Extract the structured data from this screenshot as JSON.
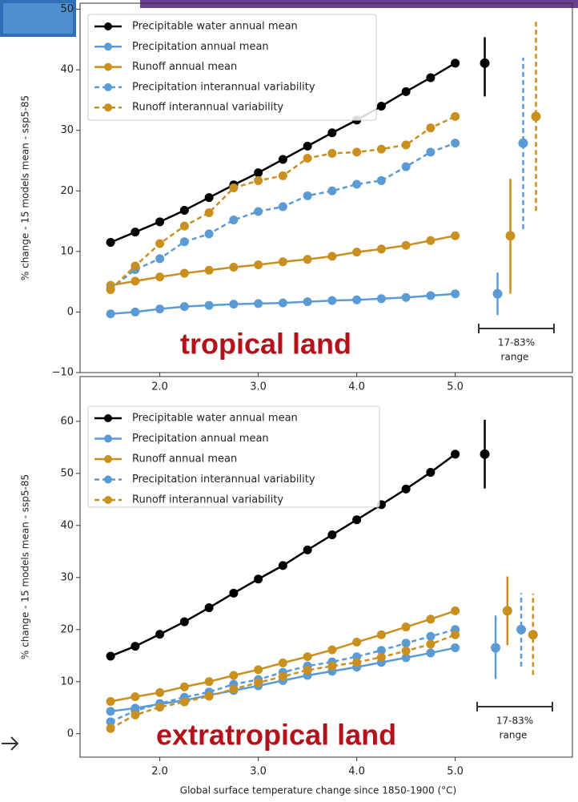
{
  "chart_data": [
    {
      "type": "line",
      "annotation": "tropical land",
      "range_label": "17-83%",
      "range_sublabel": "range",
      "ylabel": "% change - 15 models mean - ssp5-85",
      "x": [
        1.5,
        1.75,
        2.0,
        2.25,
        2.5,
        2.75,
        3.0,
        3.25,
        3.5,
        3.75,
        4.0,
        4.25,
        4.5,
        4.75,
        5.0
      ],
      "xlim": [
        1.19,
        6.19
      ],
      "xticks": [
        {
          "value": 2,
          "label": "2.0"
        },
        {
          "value": 3,
          "label": "3.0"
        },
        {
          "value": 4,
          "label": "4.0"
        },
        {
          "value": 5,
          "label": "5.0"
        }
      ],
      "ylim": [
        -10,
        51
      ],
      "yticks": [
        {
          "value": -10,
          "label": "−10"
        },
        0,
        10,
        20,
        30,
        40,
        50
      ],
      "series": [
        {
          "name": "Precipitable water annual mean",
          "color": "#000000",
          "linestyle": "solid",
          "values": [
            11.5,
            13.2,
            14.9,
            16.8,
            18.9,
            21.0,
            23.0,
            25.2,
            27.4,
            29.6,
            31.7,
            34.0,
            36.4,
            38.7,
            41.1
          ],
          "range": {
            "x": 5.3,
            "low": 35.6,
            "high": 45.4
          }
        },
        {
          "name": "Precipitation annual mean",
          "color": "#5b9bd5",
          "linestyle": "solid",
          "values": [
            -0.3,
            0,
            0.5,
            0.9,
            1.1,
            1.3,
            1.4,
            1.5,
            1.7,
            1.9,
            2.0,
            2.2,
            2.4,
            2.7,
            3.0
          ],
          "range": {
            "x": 5.43,
            "low": -0.5,
            "high": 6.5
          }
        },
        {
          "name": "Runoff annual mean",
          "color": "#c98f1f",
          "linestyle": "solid",
          "values": [
            4.4,
            5.1,
            5.8,
            6.4,
            6.9,
            7.4,
            7.8,
            8.3,
            8.7,
            9.2,
            9.9,
            10.4,
            11.0,
            11.8,
            12.6
          ],
          "range": {
            "x": 5.56,
            "low": 3.0,
            "high": 22.0
          }
        },
        {
          "name": "Precipitation interannual variability",
          "color": "#5b9bd5",
          "linestyle": "dashed",
          "values": [
            3.8,
            7.0,
            8.8,
            11.6,
            12.9,
            15.2,
            16.6,
            17.4,
            19.2,
            20.0,
            21.1,
            21.7,
            24.0,
            26.4,
            27.9
          ],
          "range": {
            "x": 5.69,
            "low": 13.7,
            "high": 42.0
          }
        },
        {
          "name": "Runoff interannual variability",
          "color": "#c98f1f",
          "linestyle": "dashed",
          "values": [
            3.7,
            7.6,
            11.3,
            14.2,
            16.4,
            20.5,
            21.7,
            22.5,
            25.4,
            26.2,
            26.4,
            26.9,
            27.6,
            30.4,
            32.3
          ],
          "range": {
            "x": 5.82,
            "low": 16.7,
            "high": 48.0
          }
        }
      ]
    },
    {
      "type": "line",
      "annotation": "extratropical land",
      "range_label": "17-83%",
      "range_sublabel": "range",
      "ylabel": "% change - 15 models mean - ssp5-85",
      "xlabel": "Global surface temperature change since 1850-1900 (°C)",
      "x": [
        1.5,
        1.75,
        2.0,
        2.25,
        2.5,
        2.75,
        3.0,
        3.25,
        3.5,
        3.75,
        4.0,
        4.25,
        4.5,
        4.75,
        5.0
      ],
      "xlim": [
        1.19,
        6.19
      ],
      "xticks": [
        {
          "value": 2,
          "label": "2.0"
        },
        {
          "value": 3,
          "label": "3.0"
        },
        {
          "value": 4,
          "label": "4.0"
        },
        {
          "value": 5,
          "label": "5.0"
        }
      ],
      "ylim": [
        -4.5,
        68.6
      ],
      "yticks": [
        0,
        10,
        20,
        30,
        40,
        50,
        60
      ],
      "series": [
        {
          "name": "Precipitable water annual mean",
          "color": "#000000",
          "linestyle": "solid",
          "values": [
            14.9,
            16.8,
            19.1,
            21.5,
            24.2,
            27.0,
            29.7,
            32.3,
            35.3,
            38.2,
            41.1,
            44.0,
            47.0,
            50.2,
            53.7
          ],
          "range": {
            "x": 5.3,
            "low": 47.1,
            "high": 60.3
          }
        },
        {
          "name": "Precipitation annual mean",
          "color": "#5b9bd5",
          "linestyle": "solid",
          "values": [
            4.3,
            4.9,
            5.7,
            6.4,
            7.4,
            8.3,
            9.2,
            10.2,
            11.2,
            12.0,
            12.8,
            13.7,
            14.6,
            15.5,
            16.5
          ],
          "range": {
            "x": 5.41,
            "low": 10.5,
            "high": 22.7
          }
        },
        {
          "name": "Runoff annual mean",
          "color": "#c98f1f",
          "linestyle": "solid",
          "values": [
            6.2,
            7.1,
            7.9,
            9.0,
            10.0,
            11.2,
            12.3,
            13.6,
            14.8,
            16.1,
            17.6,
            19.0,
            20.5,
            22.0,
            23.6
          ],
          "range": {
            "x": 5.53,
            "low": 17.0,
            "high": 30.2
          }
        },
        {
          "name": "Precipitation interannual variability",
          "color": "#5b9bd5",
          "linestyle": "dashed",
          "values": [
            2.3,
            4.4,
            5.8,
            7.0,
            8.0,
            9.5,
            10.4,
            11.8,
            13.0,
            13.8,
            14.8,
            16.0,
            17.4,
            18.7,
            20.0
          ],
          "range": {
            "x": 5.67,
            "low": 12.9,
            "high": 27.0
          }
        },
        {
          "name": "Runoff interannual variability",
          "color": "#c98f1f",
          "linestyle": "dashed",
          "values": [
            1.0,
            3.6,
            5.1,
            6.1,
            7.2,
            8.6,
            9.8,
            11.0,
            12.2,
            13.0,
            13.7,
            14.7,
            15.9,
            17.2,
            19.0
          ],
          "range": {
            "x": 5.79,
            "low": 11.3,
            "high": 26.9
          }
        }
      ]
    }
  ]
}
